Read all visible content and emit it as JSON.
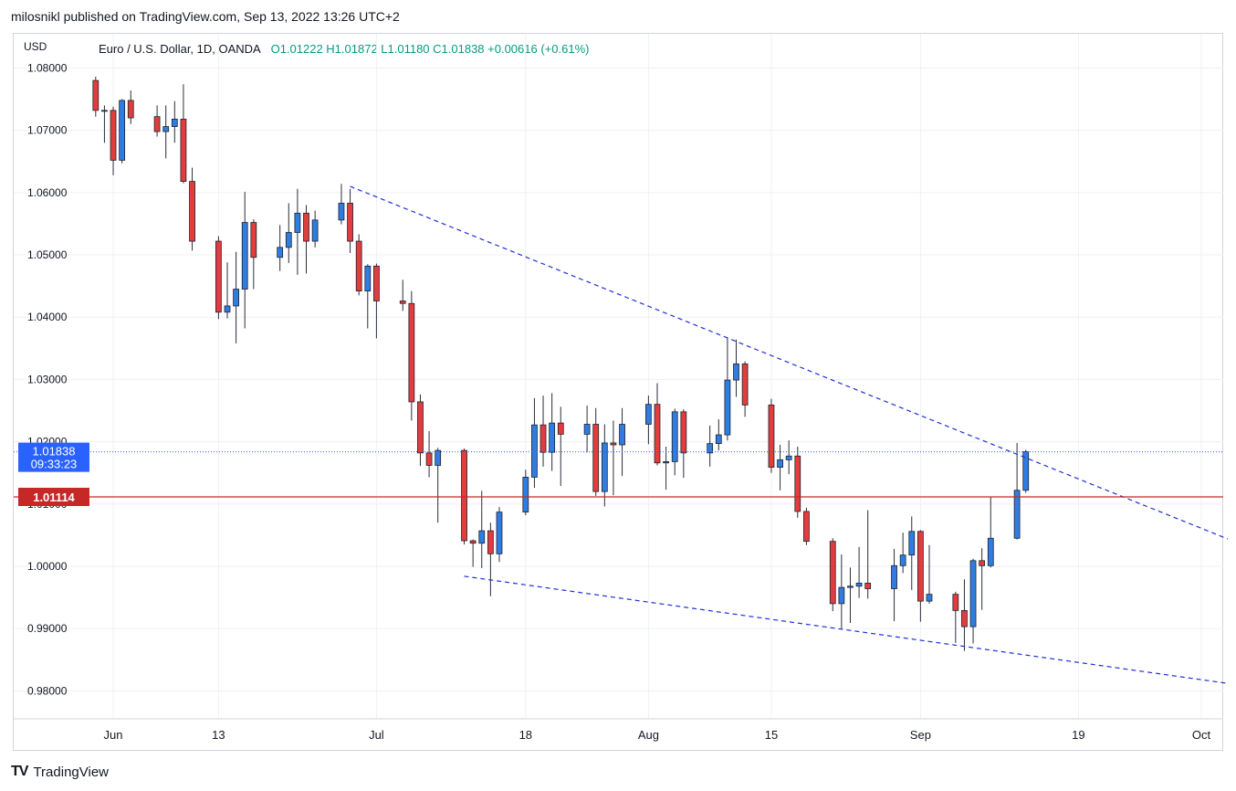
{
  "header": {
    "title": "milosnikl published on TradingView.com, Sep 13, 2022 13:26 UTC+2"
  },
  "legend": {
    "symbol": "Euro / U.S. Dollar, 1D, OANDA",
    "ohlc": "O1.01222  H1.01872  L1.01180  C1.01838  +0.00616 (+0.61%)"
  },
  "footer": {
    "brand": "TradingView"
  },
  "colors": {
    "up": "#2f7de1",
    "down": "#e23d3d",
    "line": "#1f2fd8",
    "hline": "#c62828",
    "last": "#2962ff"
  },
  "chart_data": {
    "type": "candlestick",
    "yunit": "USD",
    "ylim": [
      0.9755,
      1.0855
    ],
    "yticks": [
      0.98,
      0.99,
      1.0,
      1.01,
      1.02,
      1.03,
      1.04,
      1.05,
      1.06,
      1.07,
      1.08
    ],
    "ytick_labels": [
      "0.98000",
      "0.99000",
      "1.00000",
      "1.01000",
      "1.02000",
      "1.03000",
      "1.04000",
      "1.05000",
      "1.06000",
      "1.07000",
      "1.08000"
    ],
    "xlim": [
      "2022-05-30",
      "2022-10-06"
    ],
    "xticks": [
      {
        "date": "2022-06-01",
        "label": "Jun"
      },
      {
        "date": "2022-06-13",
        "label": "13"
      },
      {
        "date": "2022-07-01",
        "label": "Jul"
      },
      {
        "date": "2022-07-18",
        "label": "18"
      },
      {
        "date": "2022-08-01",
        "label": "Aug"
      },
      {
        "date": "2022-08-15",
        "label": "15"
      },
      {
        "date": "2022-09-01",
        "label": "Sep"
      },
      {
        "date": "2022-09-19",
        "label": "19"
      },
      {
        "date": "2022-10-03",
        "label": "Oct"
      }
    ],
    "candles": [
      {
        "date": "2022-05-30",
        "o": 1.078,
        "h": 1.0786,
        "l": 1.0722,
        "c": 1.0732
      },
      {
        "date": "2022-05-31",
        "o": 1.0732,
        "h": 1.074,
        "l": 1.068,
        "c": 1.0732
      },
      {
        "date": "2022-06-01",
        "o": 1.0732,
        "h": 1.0738,
        "l": 1.0628,
        "c": 1.0652
      },
      {
        "date": "2022-06-02",
        "o": 1.0652,
        "h": 1.075,
        "l": 1.0647,
        "c": 1.0748
      },
      {
        "date": "2022-06-03",
        "o": 1.0748,
        "h": 1.0764,
        "l": 1.071,
        "c": 1.072
      },
      {
        "date": "2022-06-06",
        "o": 1.0722,
        "h": 1.074,
        "l": 1.069,
        "c": 1.0698
      },
      {
        "date": "2022-06-07",
        "o": 1.0698,
        "h": 1.074,
        "l": 1.0655,
        "c": 1.0706
      },
      {
        "date": "2022-06-08",
        "o": 1.0706,
        "h": 1.0747,
        "l": 1.068,
        "c": 1.0718
      },
      {
        "date": "2022-06-09",
        "o": 1.0718,
        "h": 1.0774,
        "l": 1.0615,
        "c": 1.0618
      },
      {
        "date": "2022-06-10",
        "o": 1.0618,
        "h": 1.064,
        "l": 1.0507,
        "c": 1.0522
      },
      {
        "date": "2022-06-13",
        "o": 1.0522,
        "h": 1.053,
        "l": 1.0397,
        "c": 1.0408
      },
      {
        "date": "2022-06-14",
        "o": 1.0408,
        "h": 1.0488,
        "l": 1.0398,
        "c": 1.0418
      },
      {
        "date": "2022-06-15",
        "o": 1.0418,
        "h": 1.0505,
        "l": 1.0358,
        "c": 1.0445
      },
      {
        "date": "2022-06-16",
        "o": 1.0445,
        "h": 1.0601,
        "l": 1.0382,
        "c": 1.0552
      },
      {
        "date": "2022-06-17",
        "o": 1.0552,
        "h": 1.0557,
        "l": 1.0445,
        "c": 1.0496
      },
      {
        "date": "2022-06-20",
        "o": 1.0496,
        "h": 1.0548,
        "l": 1.0474,
        "c": 1.0512
      },
      {
        "date": "2022-06-21",
        "o": 1.0512,
        "h": 1.0583,
        "l": 1.0487,
        "c": 1.0536
      },
      {
        "date": "2022-06-22",
        "o": 1.0536,
        "h": 1.0606,
        "l": 1.0468,
        "c": 1.0567
      },
      {
        "date": "2022-06-23",
        "o": 1.0567,
        "h": 1.058,
        "l": 1.047,
        "c": 1.0522
      },
      {
        "date": "2022-06-24",
        "o": 1.0522,
        "h": 1.0571,
        "l": 1.0512,
        "c": 1.0556
      },
      {
        "date": "2022-06-27",
        "o": 1.0556,
        "h": 1.0614,
        "l": 1.0549,
        "c": 1.0583
      },
      {
        "date": "2022-06-28",
        "o": 1.0583,
        "h": 1.0606,
        "l": 1.0503,
        "c": 1.0522
      },
      {
        "date": "2022-06-29",
        "o": 1.0522,
        "h": 1.0533,
        "l": 1.0435,
        "c": 1.0442
      },
      {
        "date": "2022-06-30",
        "o": 1.0442,
        "h": 1.0485,
        "l": 1.0382,
        "c": 1.0482
      },
      {
        "date": "2022-07-01",
        "o": 1.0482,
        "h": 1.0486,
        "l": 1.0366,
        "c": 1.0426
      },
      {
        "date": "2022-07-04",
        "o": 1.0426,
        "h": 1.046,
        "l": 1.041,
        "c": 1.0422
      },
      {
        "date": "2022-07-05",
        "o": 1.0422,
        "h": 1.0442,
        "l": 1.0234,
        "c": 1.0264
      },
      {
        "date": "2022-07-06",
        "o": 1.0264,
        "h": 1.0276,
        "l": 1.0161,
        "c": 1.0182
      },
      {
        "date": "2022-07-07",
        "o": 1.0182,
        "h": 1.0217,
        "l": 1.0143,
        "c": 1.0162
      },
      {
        "date": "2022-07-08",
        "o": 1.0162,
        "h": 1.019,
        "l": 1.007,
        "c": 1.0186
      },
      {
        "date": "2022-07-11",
        "o": 1.0186,
        "h": 1.0189,
        "l": 1.0035,
        "c": 1.0041
      },
      {
        "date": "2022-07-12",
        "o": 1.0041,
        "h": 1.0043,
        "l": 0.9999,
        "c": 1.0037
      },
      {
        "date": "2022-07-13",
        "o": 1.0037,
        "h": 1.0121,
        "l": 0.9997,
        "c": 1.0057
      },
      {
        "date": "2022-07-14",
        "o": 1.0057,
        "h": 1.007,
        "l": 0.9952,
        "c": 1.002
      },
      {
        "date": "2022-07-15",
        "o": 1.002,
        "h": 1.0095,
        "l": 1.0007,
        "c": 1.0087
      },
      {
        "date": "2022-07-18",
        "o": 1.0087,
        "h": 1.0155,
        "l": 1.0082,
        "c": 1.0143
      },
      {
        "date": "2022-07-19",
        "o": 1.0143,
        "h": 1.027,
        "l": 1.0126,
        "c": 1.0227
      },
      {
        "date": "2022-07-20",
        "o": 1.0227,
        "h": 1.0274,
        "l": 1.016,
        "c": 1.0183
      },
      {
        "date": "2022-07-21",
        "o": 1.0183,
        "h": 1.0278,
        "l": 1.0153,
        "c": 1.023
      },
      {
        "date": "2022-07-22",
        "o": 1.023,
        "h": 1.0256,
        "l": 1.0129,
        "c": 1.0212
      },
      {
        "date": "2022-07-25",
        "o": 1.0212,
        "h": 1.0258,
        "l": 1.0183,
        "c": 1.0228
      },
      {
        "date": "2022-07-26",
        "o": 1.0228,
        "h": 1.0254,
        "l": 1.0113,
        "c": 1.012
      },
      {
        "date": "2022-07-27",
        "o": 1.012,
        "h": 1.0228,
        "l": 1.0096,
        "c": 1.0198
      },
      {
        "date": "2022-07-28",
        "o": 1.0198,
        "h": 1.0234,
        "l": 1.0114,
        "c": 1.0195
      },
      {
        "date": "2022-07-29",
        "o": 1.0195,
        "h": 1.0254,
        "l": 1.0145,
        "c": 1.0228
      },
      {
        "date": "2022-08-01",
        "o": 1.0228,
        "h": 1.0274,
        "l": 1.0196,
        "c": 1.026
      },
      {
        "date": "2022-08-02",
        "o": 1.026,
        "h": 1.0294,
        "l": 1.0162,
        "c": 1.0166
      },
      {
        "date": "2022-08-03",
        "o": 1.0166,
        "h": 1.0192,
        "l": 1.0123,
        "c": 1.0168
      },
      {
        "date": "2022-08-04",
        "o": 1.0168,
        "h": 1.0253,
        "l": 1.0146,
        "c": 1.0248
      },
      {
        "date": "2022-08-05",
        "o": 1.0248,
        "h": 1.0252,
        "l": 1.0142,
        "c": 1.0182
      },
      {
        "date": "2022-08-08",
        "o": 1.0182,
        "h": 1.0226,
        "l": 1.016,
        "c": 1.0197
      },
      {
        "date": "2022-08-09",
        "o": 1.0197,
        "h": 1.0236,
        "l": 1.0186,
        "c": 1.0211
      },
      {
        "date": "2022-08-10",
        "o": 1.0211,
        "h": 1.0368,
        "l": 1.0202,
        "c": 1.0299
      },
      {
        "date": "2022-08-11",
        "o": 1.0299,
        "h": 1.0364,
        "l": 1.0272,
        "c": 1.0325
      },
      {
        "date": "2022-08-12",
        "o": 1.0325,
        "h": 1.0329,
        "l": 1.024,
        "c": 1.0259
      },
      {
        "date": "2022-08-15",
        "o": 1.0259,
        "h": 1.0269,
        "l": 1.015,
        "c": 1.0159
      },
      {
        "date": "2022-08-16",
        "o": 1.0159,
        "h": 1.0195,
        "l": 1.0122,
        "c": 1.0171
      },
      {
        "date": "2022-08-17",
        "o": 1.0171,
        "h": 1.0202,
        "l": 1.0148,
        "c": 1.0177
      },
      {
        "date": "2022-08-18",
        "o": 1.0177,
        "h": 1.0192,
        "l": 1.0078,
        "c": 1.0088
      },
      {
        "date": "2022-08-19",
        "o": 1.0088,
        "h": 1.0094,
        "l": 1.0034,
        "c": 1.004
      },
      {
        "date": "2022-08-22",
        "o": 1.004,
        "h": 1.0045,
        "l": 0.9928,
        "c": 0.994
      },
      {
        "date": "2022-08-23",
        "o": 0.994,
        "h": 1.0019,
        "l": 0.99,
        "c": 0.9966
      },
      {
        "date": "2022-08-24",
        "o": 0.9966,
        "h": 0.9998,
        "l": 0.9909,
        "c": 0.9968
      },
      {
        "date": "2022-08-25",
        "o": 0.9968,
        "h": 1.0031,
        "l": 0.9949,
        "c": 0.9973
      },
      {
        "date": "2022-08-26",
        "o": 0.9973,
        "h": 1.009,
        "l": 0.9948,
        "c": 0.9964
      },
      {
        "date": "2022-08-29",
        "o": 0.9964,
        "h": 1.0028,
        "l": 0.9912,
        "c": 1.0001
      },
      {
        "date": "2022-08-30",
        "o": 1.0001,
        "h": 1.0054,
        "l": 0.9989,
        "c": 1.0018
      },
      {
        "date": "2022-08-31",
        "o": 1.0018,
        "h": 1.008,
        "l": 0.9962,
        "c": 1.0056
      },
      {
        "date": "2022-09-01",
        "o": 1.0056,
        "h": 1.0058,
        "l": 0.9911,
        "c": 0.9944
      },
      {
        "date": "2022-09-02",
        "o": 0.9944,
        "h": 1.0034,
        "l": 0.994,
        "c": 0.9955
      },
      {
        "date": "2022-09-05",
        "o": 0.9955,
        "h": 0.9959,
        "l": 0.9877,
        "c": 0.9929
      },
      {
        "date": "2022-09-06",
        "o": 0.9929,
        "h": 0.9979,
        "l": 0.9864,
        "c": 0.9903
      },
      {
        "date": "2022-09-07",
        "o": 0.9903,
        "h": 1.0012,
        "l": 0.9876,
        "c": 1.0009
      },
      {
        "date": "2022-09-08",
        "o": 1.0009,
        "h": 1.0029,
        "l": 0.993,
        "c": 1.0001
      },
      {
        "date": "2022-09-09",
        "o": 1.0001,
        "h": 1.0112,
        "l": 0.9998,
        "c": 1.0045
      },
      {
        "date": "2022-09-12",
        "o": 1.0045,
        "h": 1.0198,
        "l": 1.0043,
        "c": 1.0122
      },
      {
        "date": "2022-09-13",
        "o": 1.0122,
        "h": 1.0187,
        "l": 1.0118,
        "c": 1.0184
      }
    ],
    "trendlines": [
      {
        "from": {
          "date": "2022-06-28",
          "value": 1.061
        },
        "to": {
          "date": "2022-10-06",
          "value": 1.0044
        }
      },
      {
        "from": {
          "date": "2022-07-11",
          "value": 0.9984
        },
        "to": {
          "date": "2022-10-06",
          "value": 0.9812
        }
      }
    ],
    "hlines": [
      {
        "value": 1.01114,
        "label": "1.01114"
      }
    ],
    "last_price": {
      "value": 1.01838,
      "label": "1.01838",
      "countdown": "09:33:23"
    }
  }
}
